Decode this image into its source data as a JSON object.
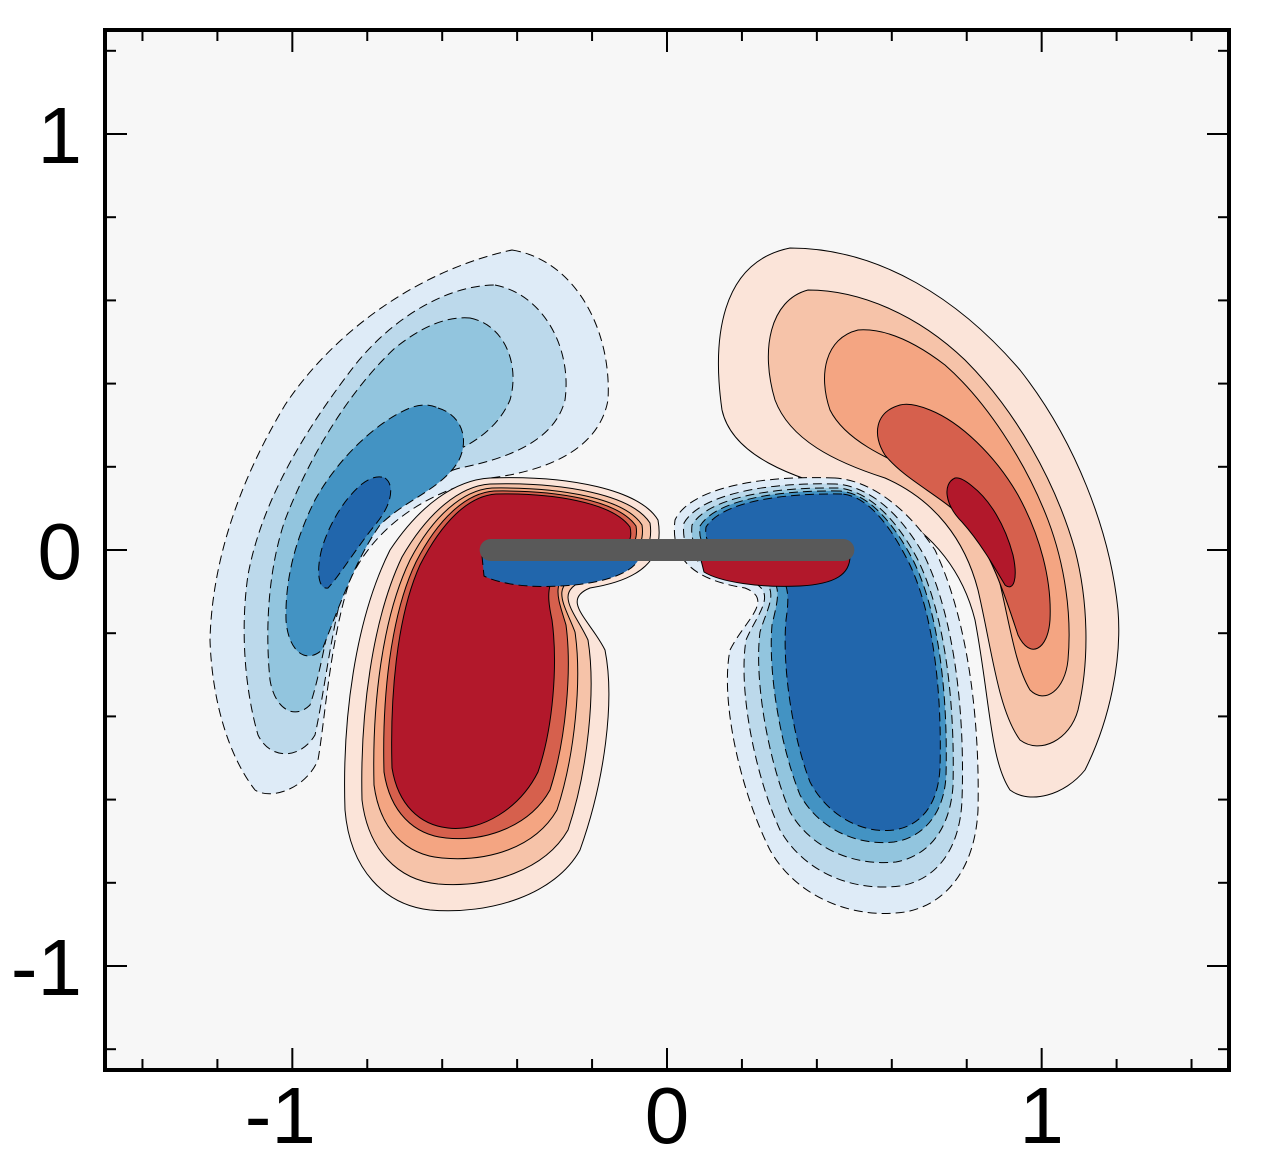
{
  "chart_data": {
    "type": "heatmap",
    "title": "",
    "xlabel": "",
    "ylabel": "",
    "xlim": [
      -1.5,
      1.5
    ],
    "ylim": [
      -1.25,
      1.25
    ],
    "x_ticks": [
      {
        "value": -1,
        "label": "-1"
      },
      {
        "value": 0,
        "label": "0"
      },
      {
        "value": 1,
        "label": "1"
      }
    ],
    "y_ticks": [
      {
        "value": 1,
        "label": "1"
      },
      {
        "value": 0,
        "label": "0"
      },
      {
        "value": -1,
        "label": "-1"
      }
    ],
    "minor_tick_step": 0.2,
    "grid": false,
    "legend": "none",
    "colormap": {
      "negative_strong": "#2166ac",
      "negative_mid": "#4393c3",
      "negative_light": "#92c5de",
      "negative_faint": "#deebf7",
      "background": "#f7f7f7",
      "positive_faint": "#fbe4d9",
      "positive_light": "#f4a582",
      "positive_mid": "#d6604d",
      "positive_strong": "#b2182b"
    },
    "plate": {
      "x_start": -0.5,
      "x_end": 0.5,
      "y": 0.0,
      "color": "#595959"
    },
    "structures": [
      {
        "name": "outer-left-lobe",
        "sign": -1,
        "peak_x": -0.85,
        "peak_y": 0.05
      },
      {
        "name": "outer-right-lobe",
        "sign": 1,
        "peak_x": 0.85,
        "peak_y": 0.05
      },
      {
        "name": "inner-left-lobe",
        "sign": 1,
        "peak_x": -0.42,
        "peak_y": -0.35
      },
      {
        "name": "inner-right-lobe",
        "sign": -1,
        "peak_x": 0.42,
        "peak_y": -0.35
      }
    ]
  }
}
